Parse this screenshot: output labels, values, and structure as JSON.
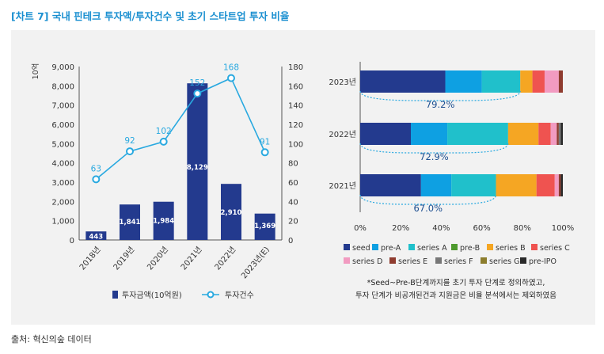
{
  "header": {
    "title": "[차트 7] 국내 핀테크 투자액/투자건수 및 초기 스타트업 투자 비율",
    "source": "출처: 혁신의숲 데이터"
  },
  "colors": {
    "title": "#1a8fd0",
    "bar": "#233a8e",
    "line": "#29a9e0",
    "label": "#29a9e0",
    "panel": "#f2f2f2"
  },
  "notes": [
    "*Seed~Pre-B단계까지를 초기 투자 단계로 정의하였고,",
    "투자 단계가 비공개된건과 지원금은 비율 분석에서는 제외하였음"
  ],
  "chart_data": [
    {
      "type": "bar",
      "title": "",
      "ylabel": "10억",
      "categories": [
        "2018년",
        "2019년",
        "2020년",
        "2021년",
        "2022년",
        "2023년(E)"
      ],
      "ylim": [
        0,
        9000
      ],
      "y_ticks": [
        "0",
        "1,000",
        "2,000",
        "3,000",
        "4,000",
        "5,000",
        "6,000",
        "7,000",
        "8,000",
        "9,000"
      ],
      "y2lim": [
        0,
        180
      ],
      "y2_ticks": [
        "0",
        "20",
        "40",
        "60",
        "80",
        "100",
        "120",
        "140",
        "160",
        "180"
      ],
      "series": [
        {
          "name": "투자금액(10억원)",
          "type": "bar",
          "axis": "left",
          "values": [
            443,
            1841,
            1984,
            8129,
            2910,
            1369
          ],
          "labels": [
            "443",
            "1,841",
            "1,984",
            "8,129",
            "2,910",
            "1,369"
          ]
        },
        {
          "name": "투자건수",
          "type": "line",
          "axis": "right",
          "values": [
            63,
            92,
            102,
            152,
            168,
            91
          ],
          "labels": [
            "63",
            "92",
            "102",
            "152",
            "168",
            "91"
          ]
        }
      ],
      "legend": [
        "투자금액(10억원)",
        "투자건수"
      ]
    },
    {
      "type": "bar",
      "orientation": "horizontal",
      "stacked": true,
      "title": "",
      "categories": [
        "2023년",
        "2022년",
        "2021년"
      ],
      "xlim": [
        0,
        100
      ],
      "x_ticks": [
        "0%",
        "20%",
        "40%",
        "60%",
        "80%",
        "100%"
      ],
      "series": [
        {
          "name": "seed",
          "color": "#233a8e",
          "values": [
            42,
            25,
            30
          ]
        },
        {
          "name": "pre-A",
          "color": "#0ea0e2",
          "values": [
            18,
            18,
            15
          ]
        },
        {
          "name": "series A",
          "color": "#20c0cb",
          "values": [
            19,
            30,
            22
          ]
        },
        {
          "name": "pre-B",
          "color": "#4e9a2e",
          "values": [
            0,
            0,
            0
          ]
        },
        {
          "name": "series B",
          "color": "#f5a623",
          "values": [
            6,
            15,
            20
          ]
        },
        {
          "name": "series C",
          "color": "#ef5350",
          "values": [
            6,
            6,
            9
          ]
        },
        {
          "name": "series D",
          "color": "#f29bc1",
          "values": [
            7,
            3,
            2
          ]
        },
        {
          "name": "series E",
          "color": "#8f3c2f",
          "values": [
            2,
            1,
            1
          ]
        },
        {
          "name": "series F",
          "color": "#777777",
          "values": [
            0,
            1,
            0
          ]
        },
        {
          "name": "series G",
          "color": "#8c7d2d",
          "values": [
            0,
            0,
            0
          ]
        },
        {
          "name": "pre-IPO",
          "color": "#2a2a2a",
          "values": [
            0,
            1,
            1
          ]
        }
      ],
      "early_ratio": [
        "79.2%",
        "72.9%",
        "67.0%"
      ],
      "legend_rows": [
        [
          "seed",
          "pre-A",
          "series A",
          "pre-B",
          "series B",
          "series C"
        ],
        [
          "series D",
          "series E",
          "series F",
          "series G",
          "pre-IPO"
        ]
      ]
    }
  ]
}
